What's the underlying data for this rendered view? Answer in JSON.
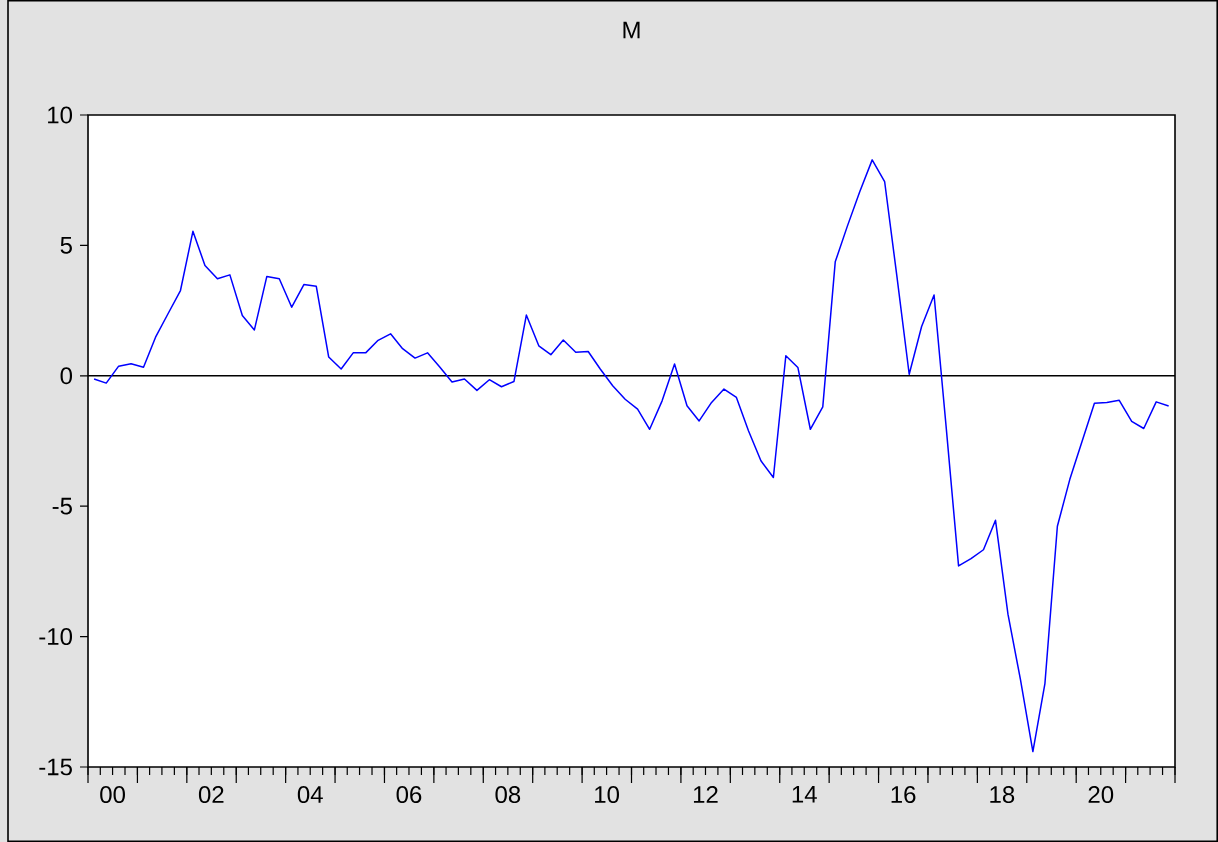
{
  "chart_data": {
    "type": "line",
    "title": "M",
    "x": [
      "2000-02-15",
      "2000-05-15",
      "2000-08-15",
      "2000-11-15",
      "2001-02-15",
      "2001-05-15",
      "2001-08-15",
      "2001-11-15",
      "2002-02-15",
      "2002-05-15",
      "2002-08-15",
      "2002-11-15",
      "2003-02-15",
      "2003-05-15",
      "2003-08-15",
      "2003-11-15",
      "2004-02-15",
      "2004-05-15",
      "2004-08-15",
      "2004-11-15",
      "2005-02-15",
      "2005-05-15",
      "2005-08-15",
      "2005-11-15",
      "2006-02-15",
      "2006-05-15",
      "2006-08-15",
      "2006-11-15",
      "2007-02-15",
      "2007-05-15",
      "2007-08-15",
      "2007-11-15",
      "2008-02-15",
      "2008-05-15",
      "2008-08-15",
      "2008-11-15",
      "2009-02-15",
      "2009-05-15",
      "2009-08-15",
      "2009-11-15",
      "2010-02-15",
      "2010-05-15",
      "2010-08-15",
      "2010-11-15",
      "2011-02-15",
      "2011-05-15",
      "2011-08-15",
      "2011-11-15",
      "2012-02-15",
      "2012-05-15",
      "2012-08-15",
      "2012-11-15",
      "2013-02-15",
      "2013-05-15",
      "2013-08-15",
      "2013-11-15",
      "2014-02-15",
      "2014-05-15",
      "2014-08-15",
      "2014-11-15",
      "2015-02-15",
      "2015-05-15",
      "2015-08-15",
      "2015-11-15",
      "2016-02-15",
      "2016-05-15",
      "2016-08-15",
      "2016-11-15",
      "2017-02-15",
      "2017-05-15",
      "2017-08-15",
      "2017-11-15",
      "2018-02-15",
      "2018-05-15",
      "2018-08-15",
      "2018-11-15",
      "2019-02-15",
      "2019-05-15",
      "2019-08-15",
      "2019-11-15",
      "2020-02-15",
      "2020-05-15",
      "2020-08-15",
      "2020-11-15",
      "2021-02-15",
      "2021-05-15",
      "2021-08-15",
      "2021-11-15"
    ],
    "series": [
      {
        "color": "#0000ff",
        "values": [
          -0.12,
          -0.28,
          0.37,
          0.46,
          0.33,
          1.48,
          2.38,
          3.27,
          5.54,
          4.23,
          3.72,
          3.87,
          2.31,
          1.76,
          3.81,
          3.72,
          2.63,
          3.5,
          3.43,
          0.72,
          0.26,
          0.88,
          0.88,
          1.36,
          1.61,
          1.04,
          0.68,
          0.88,
          0.33,
          -0.24,
          -0.12,
          -0.56,
          -0.15,
          -0.42,
          -0.22,
          2.33,
          1.15,
          0.81,
          1.37,
          0.9,
          0.93,
          0.26,
          -0.38,
          -0.9,
          -1.28,
          -2.05,
          -0.96,
          0.45,
          -1.15,
          -1.73,
          -1.02,
          -0.51,
          -0.83,
          -2.11,
          -3.26,
          -3.9,
          0.77,
          0.32,
          -2.05,
          -1.19,
          4.37,
          5.73,
          7.06,
          8.28,
          7.45,
          3.85,
          0.06,
          1.89,
          3.1,
          -1.94,
          -7.29,
          -7.01,
          -6.67,
          -5.54,
          -9.14,
          -11.64,
          -14.41,
          -11.8,
          -5.77,
          -3.97,
          -2.49,
          -1.05,
          -1.02,
          -0.94,
          -1.75,
          -2.02,
          -1.0,
          -1.16
        ]
      }
    ],
    "xlim": [
      "2000",
      "2022"
    ],
    "ylim": [
      -15,
      10
    ],
    "yticks": [
      -15,
      -10,
      -5,
      0,
      5,
      10
    ],
    "xticks": [
      {
        "value": "2000",
        "label": null
      },
      {
        "value": "2000-04",
        "label": null
      },
      {
        "value": "2000-07",
        "label": "00"
      },
      {
        "value": "2000-10",
        "label": null
      },
      {
        "value": "2001",
        "label": null
      },
      {
        "value": "2001-04",
        "label": null
      },
      {
        "value": "2001-07",
        "label": null
      },
      {
        "value": "2001-10",
        "label": null
      },
      {
        "value": "2002",
        "label": null
      },
      {
        "value": "2002-04",
        "label": null
      },
      {
        "value": "2002-07",
        "label": "02"
      },
      {
        "value": "2002-10",
        "label": null
      },
      {
        "value": "2003",
        "label": null
      },
      {
        "value": "2003-04",
        "label": null
      },
      {
        "value": "2003-07",
        "label": null
      },
      {
        "value": "2003-10",
        "label": null
      },
      {
        "value": "2004",
        "label": null
      },
      {
        "value": "2004-04",
        "label": null
      },
      {
        "value": "2004-07",
        "label": "04"
      },
      {
        "value": "2004-10",
        "label": null
      },
      {
        "value": "2005",
        "label": null
      },
      {
        "value": "2005-04",
        "label": null
      },
      {
        "value": "2005-07",
        "label": null
      },
      {
        "value": "2005-10",
        "label": null
      },
      {
        "value": "2006",
        "label": null
      },
      {
        "value": "2006-04",
        "label": null
      },
      {
        "value": "2006-07",
        "label": "06"
      },
      {
        "value": "2006-10",
        "label": null
      },
      {
        "value": "2007",
        "label": null
      },
      {
        "value": "2007-04",
        "label": null
      },
      {
        "value": "2007-07",
        "label": null
      },
      {
        "value": "2007-10",
        "label": null
      },
      {
        "value": "2008",
        "label": null
      },
      {
        "value": "2008-04",
        "label": null
      },
      {
        "value": "2008-07",
        "label": "08"
      },
      {
        "value": "2008-10",
        "label": null
      },
      {
        "value": "2009",
        "label": null
      },
      {
        "value": "2009-04",
        "label": null
      },
      {
        "value": "2009-07",
        "label": null
      },
      {
        "value": "2009-10",
        "label": null
      },
      {
        "value": "2010",
        "label": null
      },
      {
        "value": "2010-04",
        "label": null
      },
      {
        "value": "2010-07",
        "label": "10"
      },
      {
        "value": "2010-10",
        "label": null
      },
      {
        "value": "2011",
        "label": null
      },
      {
        "value": "2011-04",
        "label": null
      },
      {
        "value": "2011-07",
        "label": null
      },
      {
        "value": "2011-10",
        "label": null
      },
      {
        "value": "2012",
        "label": null
      },
      {
        "value": "2012-04",
        "label": null
      },
      {
        "value": "2012-07",
        "label": "12"
      },
      {
        "value": "2012-10",
        "label": null
      },
      {
        "value": "2013",
        "label": null
      },
      {
        "value": "2013-04",
        "label": null
      },
      {
        "value": "2013-07",
        "label": null
      },
      {
        "value": "2013-10",
        "label": null
      },
      {
        "value": "2014",
        "label": null
      },
      {
        "value": "2014-04",
        "label": null
      },
      {
        "value": "2014-07",
        "label": "14"
      },
      {
        "value": "2014-10",
        "label": null
      },
      {
        "value": "2015",
        "label": null
      },
      {
        "value": "2015-04",
        "label": null
      },
      {
        "value": "2015-07",
        "label": null
      },
      {
        "value": "2015-10",
        "label": null
      },
      {
        "value": "2016",
        "label": null
      },
      {
        "value": "2016-04",
        "label": null
      },
      {
        "value": "2016-07",
        "label": "16"
      },
      {
        "value": "2016-10",
        "label": null
      },
      {
        "value": "2017",
        "label": null
      },
      {
        "value": "2017-04",
        "label": null
      },
      {
        "value": "2017-07",
        "label": null
      },
      {
        "value": "2017-10",
        "label": null
      },
      {
        "value": "2018",
        "label": null
      },
      {
        "value": "2018-04",
        "label": null
      },
      {
        "value": "2018-07",
        "label": "18"
      },
      {
        "value": "2018-10",
        "label": null
      },
      {
        "value": "2019",
        "label": null
      },
      {
        "value": "2019-04",
        "label": null
      },
      {
        "value": "2019-07",
        "label": null
      },
      {
        "value": "2019-10",
        "label": null
      },
      {
        "value": "2020",
        "label": null
      },
      {
        "value": "2020-04",
        "label": null
      },
      {
        "value": "2020-07",
        "label": "20"
      },
      {
        "value": "2020-10",
        "label": null
      },
      {
        "value": "2021",
        "label": null
      },
      {
        "value": "2021-04",
        "label": null
      },
      {
        "value": "2021-07",
        "label": null
      },
      {
        "value": "2021-10",
        "label": null
      },
      {
        "value": "2022",
        "label": null
      }
    ],
    "ref_lines": [
      {
        "axis": "y",
        "value": 0,
        "color": "#000000"
      }
    ]
  }
}
